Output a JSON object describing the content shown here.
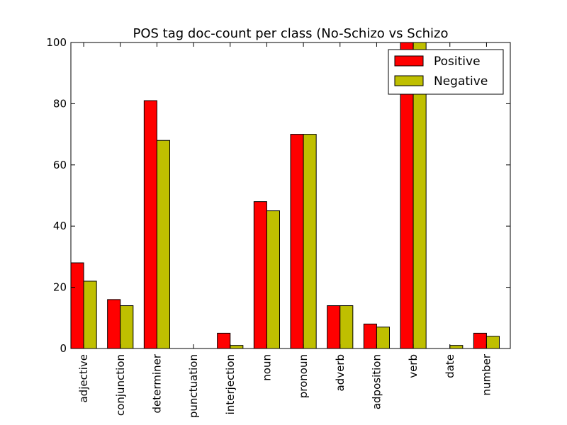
{
  "chart_data": {
    "type": "bar",
    "title": "POS tag doc-count per class (No-Schizo vs Schizo",
    "xlabel": "",
    "ylabel": "",
    "categories": [
      "adjective",
      "conjunction",
      "determiner",
      "punctuation",
      "interjection",
      "noun",
      "pronoun",
      "adverb",
      "adposition",
      "verb",
      "date",
      "number"
    ],
    "series": [
      {
        "name": "Positive",
        "values": [
          28,
          16,
          81,
          0,
          5,
          48,
          70,
          14,
          8,
          100,
          0,
          5
        ]
      },
      {
        "name": "Negative",
        "values": [
          22,
          14,
          68,
          0,
          1,
          45,
          70,
          14,
          7,
          100,
          1,
          4
        ]
      }
    ],
    "ylim": [
      0,
      100
    ],
    "yticks": [
      "0",
      "20",
      "40",
      "60",
      "80",
      "100"
    ],
    "grid": false,
    "legend_position": "top-right",
    "colors": {
      "Positive": "#ff0000",
      "Negative": "#bfbf00"
    }
  }
}
